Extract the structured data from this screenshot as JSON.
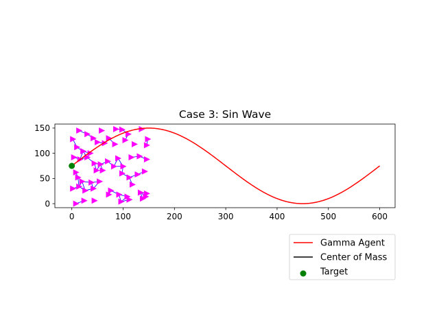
{
  "chart_data": {
    "type": "line",
    "title": "Case 3: Sin Wave",
    "xlabel": "",
    "ylabel": "",
    "xlim": [
      -33,
      630
    ],
    "ylim": [
      -8,
      158
    ],
    "xticks": [
      0,
      100,
      200,
      300,
      400,
      500,
      600
    ],
    "yticks": [
      0,
      50,
      100,
      150
    ],
    "grid": false,
    "legend_position": "lower-right",
    "series": [
      {
        "name": "Gamma Agent",
        "color": "#ff0000",
        "kind": "line",
        "function": "y = 75 + 75*sin(pi*x/300)",
        "x_range": [
          0,
          600
        ]
      },
      {
        "name": "Center of Mass",
        "color": "#000000",
        "kind": "line"
      },
      {
        "name": "Target",
        "color": "#008000",
        "kind": "scatter",
        "points": [
          [
            0,
            75
          ]
        ]
      }
    ],
    "agents": {
      "marker": "triangle-right",
      "color": "#ff00ff",
      "link_color": "#0000ff",
      "x_range": [
        0,
        150
      ],
      "y_range": [
        0,
        150
      ],
      "points": [
        [
          2,
          128
        ],
        [
          14,
          145
        ],
        [
          30,
          138
        ],
        [
          42,
          130
        ],
        [
          58,
          145
        ],
        [
          72,
          130
        ],
        [
          86,
          148
        ],
        [
          98,
          147
        ],
        [
          110,
          138
        ],
        [
          122,
          118
        ],
        [
          136,
          148
        ],
        [
          148,
          128
        ],
        [
          10,
          112
        ],
        [
          22,
          104
        ],
        [
          36,
          100
        ],
        [
          50,
          122
        ],
        [
          64,
          120
        ],
        [
          84,
          118
        ],
        [
          104,
          126
        ],
        [
          146,
          116
        ],
        [
          4,
          92
        ],
        [
          16,
          88
        ],
        [
          30,
          92
        ],
        [
          44,
          80
        ],
        [
          56,
          78
        ],
        [
          70,
          84
        ],
        [
          90,
          90
        ],
        [
          100,
          74
        ],
        [
          116,
          92
        ],
        [
          132,
          94
        ],
        [
          146,
          88
        ],
        [
          8,
          62
        ],
        [
          12,
          52
        ],
        [
          20,
          44
        ],
        [
          38,
          42
        ],
        [
          48,
          66
        ],
        [
          60,
          66
        ],
        [
          82,
          74
        ],
        [
          98,
          60
        ],
        [
          112,
          52
        ],
        [
          128,
          58
        ],
        [
          142,
          64
        ],
        [
          2,
          30
        ],
        [
          14,
          34
        ],
        [
          26,
          26
        ],
        [
          42,
          30
        ],
        [
          54,
          44
        ],
        [
          76,
          26
        ],
        [
          92,
          18
        ],
        [
          108,
          14
        ],
        [
          118,
          38
        ],
        [
          134,
          22
        ],
        [
          146,
          20
        ],
        [
          8,
          0
        ],
        [
          24,
          6
        ],
        [
          44,
          6
        ],
        [
          72,
          18
        ],
        [
          96,
          4
        ],
        [
          112,
          8
        ],
        [
          138,
          10
        ],
        [
          144,
          14
        ]
      ]
    }
  }
}
